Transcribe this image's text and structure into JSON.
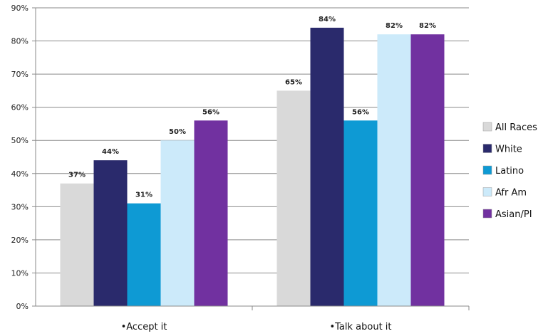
{
  "chart_data": {
    "type": "bar",
    "categories": [
      "•Accept it",
      "•Talk about it"
    ],
    "series": [
      {
        "name": "All Races",
        "color": "#d9d9d9",
        "values": [
          37,
          65
        ]
      },
      {
        "name": "White",
        "color": "#2a2a6c",
        "values": [
          44,
          84
        ]
      },
      {
        "name": "Latino",
        "color": "#0e9ad4",
        "values": [
          31,
          56
        ]
      },
      {
        "name": "Afr Am",
        "color": "#cceafa",
        "values": [
          50,
          82
        ]
      },
      {
        "name": "Asian/PI",
        "color": "#7131a0",
        "values": [
          56,
          82
        ]
      }
    ],
    "data_labels": [
      [
        "37%",
        "65%"
      ],
      [
        "44%",
        "84%"
      ],
      [
        "31%",
        "56%"
      ],
      [
        "50%",
        "82%"
      ],
      [
        "56%",
        "82%"
      ]
    ],
    "y_ticks": [
      "0%",
      "10%",
      "20%",
      "30%",
      "40%",
      "50%",
      "60%",
      "70%",
      "80%",
      "90%"
    ],
    "ylim": [
      0,
      90
    ],
    "grid": true,
    "legend_position": "right"
  }
}
